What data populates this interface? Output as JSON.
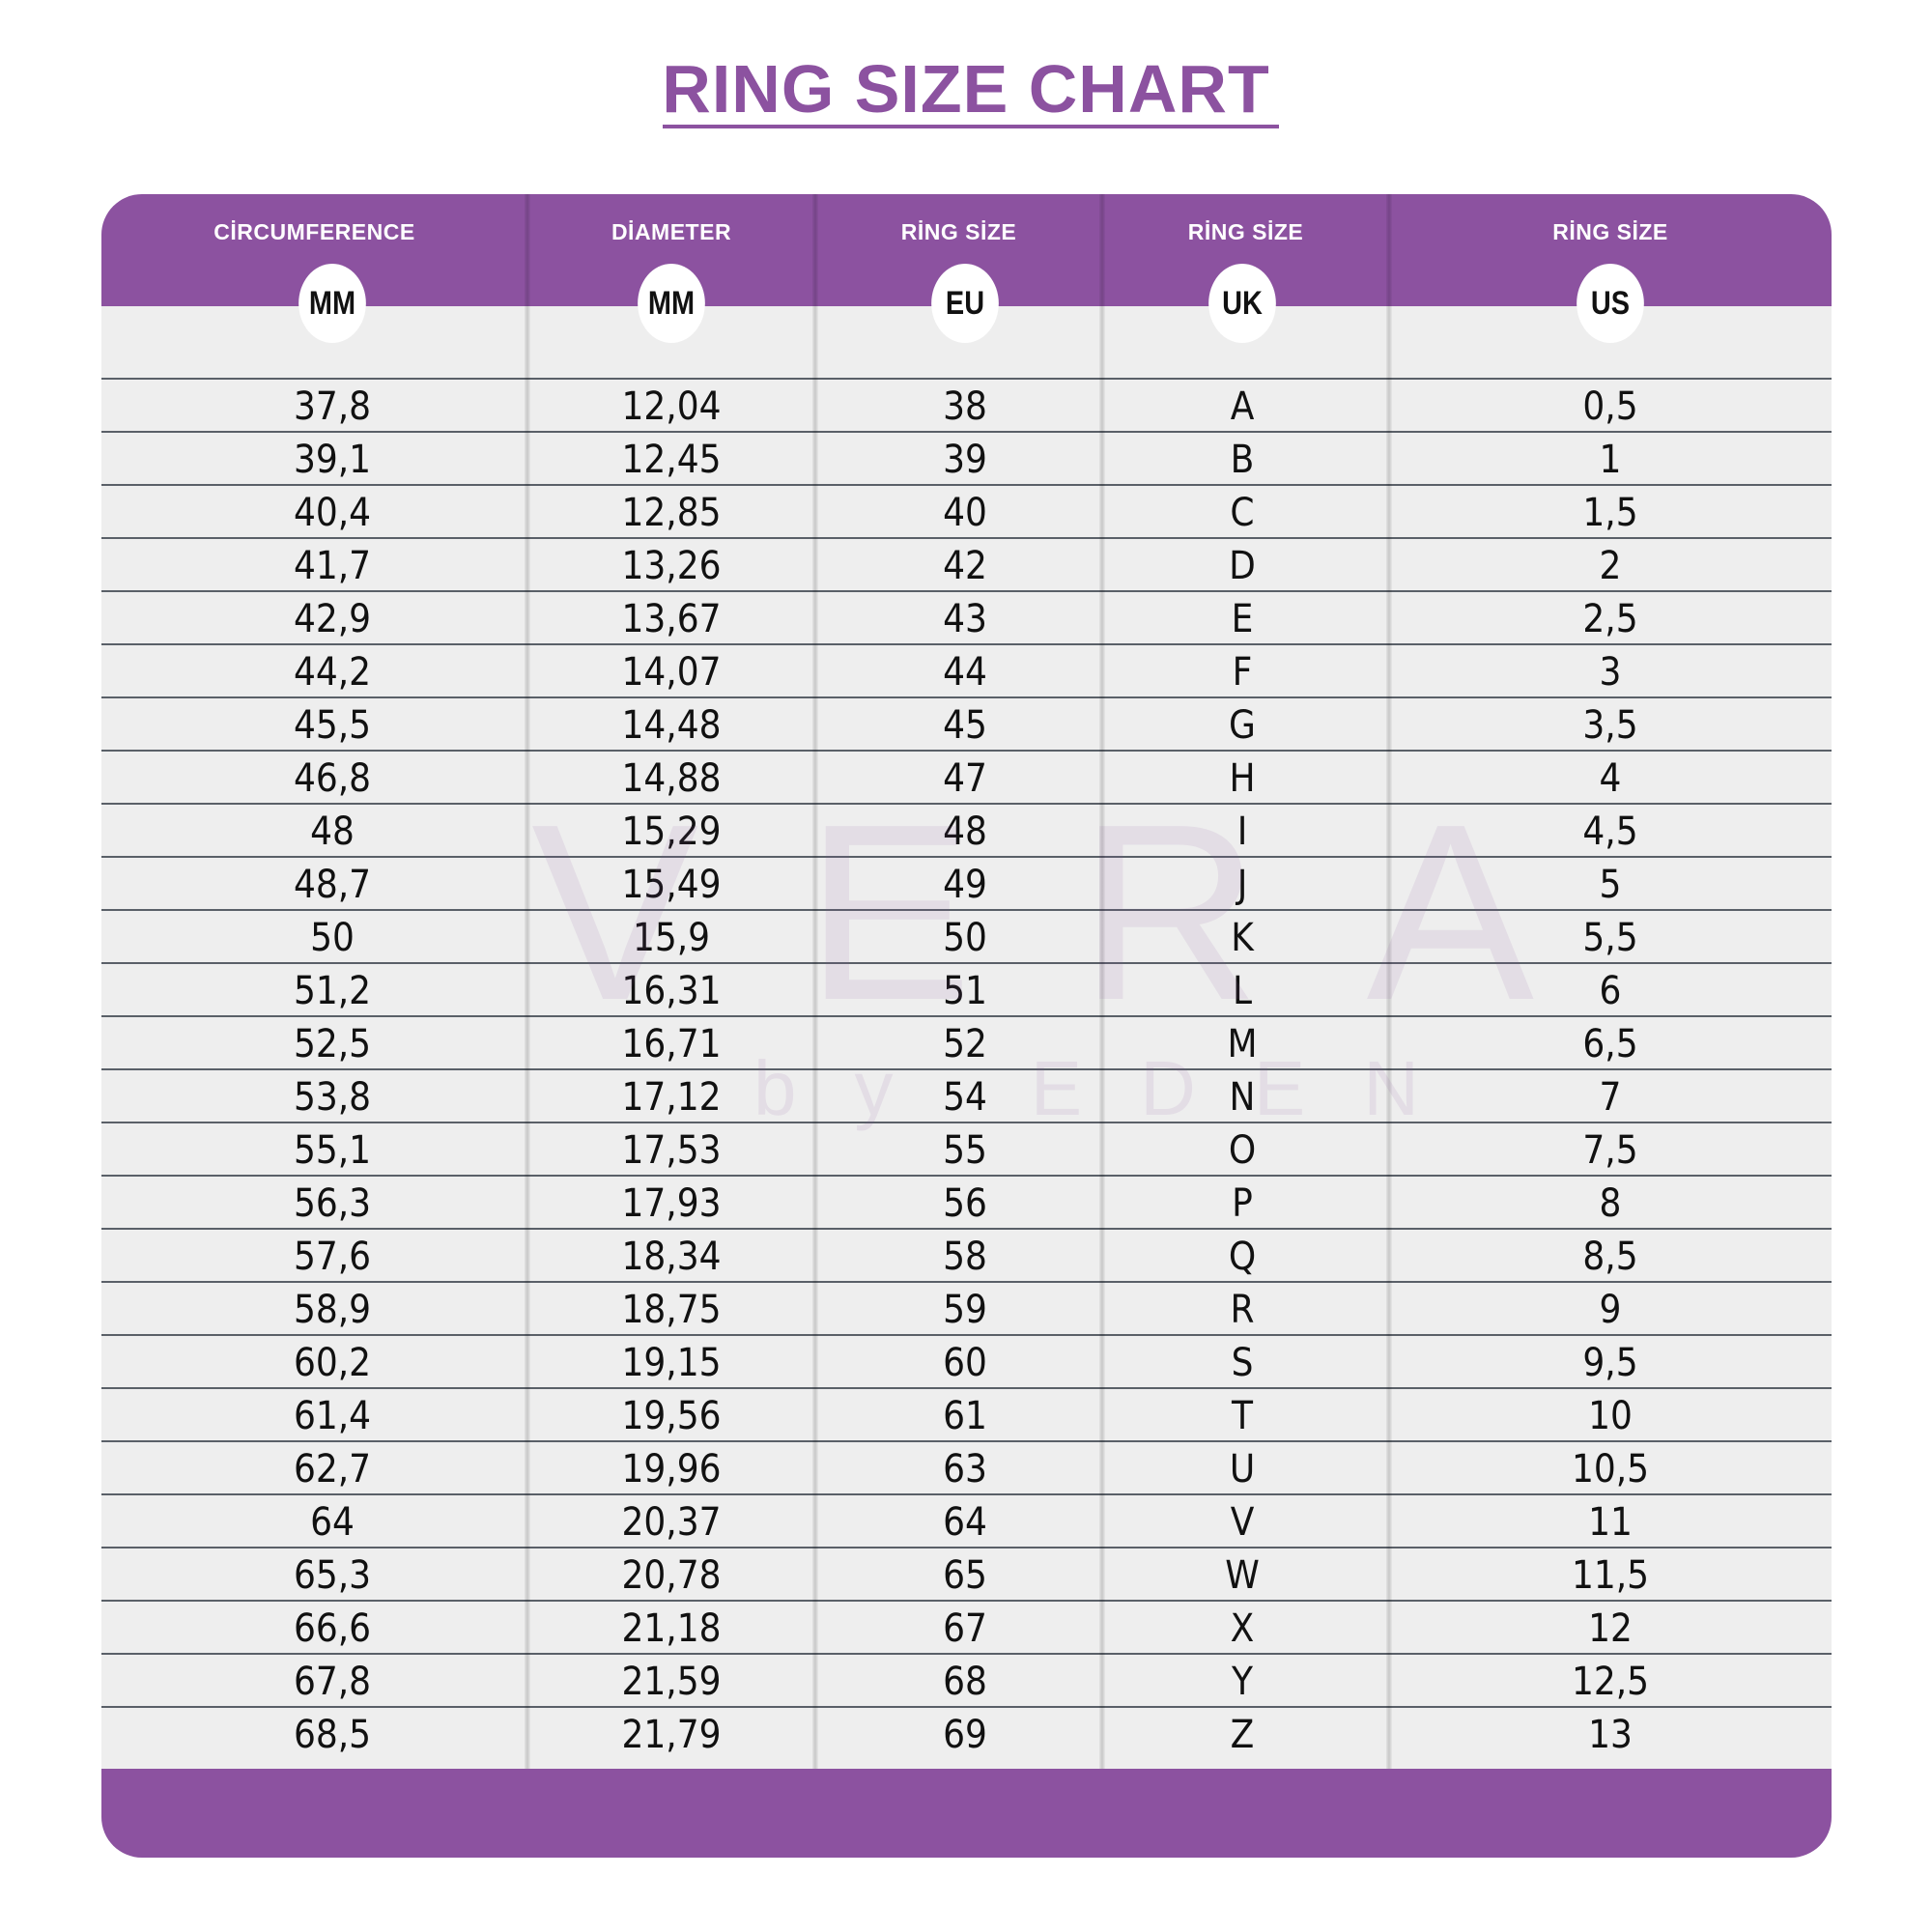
{
  "title": "RING SIZE CHART",
  "colors": {
    "accent": "#8c52a0",
    "row_bg": "#eeeeee",
    "row_line": "#5a6068"
  },
  "watermark": {
    "main": "VERA",
    "sub": "by EDEN"
  },
  "columns": [
    {
      "label": "CİRCUMFERENCE",
      "unit": "MM"
    },
    {
      "label": "DİAMETER",
      "unit": "MM"
    },
    {
      "label": "RİNG SİZE",
      "unit": "EU"
    },
    {
      "label": "RİNG SİZE",
      "unit": "UK"
    },
    {
      "label": "RİNG SİZE",
      "unit": "US"
    }
  ],
  "rows": [
    [
      "37,8",
      "12,04",
      "38",
      "A",
      "0,5"
    ],
    [
      "39,1",
      "12,45",
      "39",
      "B",
      "1"
    ],
    [
      "40,4",
      "12,85",
      "40",
      "C",
      "1,5"
    ],
    [
      "41,7",
      "13,26",
      "42",
      "D",
      "2"
    ],
    [
      "42,9",
      "13,67",
      "43",
      "E",
      "2,5"
    ],
    [
      "44,2",
      "14,07",
      "44",
      "F",
      "3"
    ],
    [
      "45,5",
      "14,48",
      "45",
      "G",
      "3,5"
    ],
    [
      "46,8",
      "14,88",
      "47",
      "H",
      "4"
    ],
    [
      "48",
      "15,29",
      "48",
      "I",
      "4,5"
    ],
    [
      "48,7",
      "15,49",
      "49",
      "J",
      "5"
    ],
    [
      "50",
      "15,9",
      "50",
      "K",
      "5,5"
    ],
    [
      "51,2",
      "16,31",
      "51",
      "L",
      "6"
    ],
    [
      "52,5",
      "16,71",
      "52",
      "M",
      "6,5"
    ],
    [
      "53,8",
      "17,12",
      "54",
      "N",
      "7"
    ],
    [
      "55,1",
      "17,53",
      "55",
      "O",
      "7,5"
    ],
    [
      "56,3",
      "17,93",
      "56",
      "P",
      "8"
    ],
    [
      "57,6",
      "18,34",
      "58",
      "Q",
      "8,5"
    ],
    [
      "58,9",
      "18,75",
      "59",
      "R",
      "9"
    ],
    [
      "60,2",
      "19,15",
      "60",
      "S",
      "9,5"
    ],
    [
      "61,4",
      "19,56",
      "61",
      "T",
      "10"
    ],
    [
      "62,7",
      "19,96",
      "63",
      "U",
      "10,5"
    ],
    [
      "64",
      "20,37",
      "64",
      "V",
      "11"
    ],
    [
      "65,3",
      "20,78",
      "65",
      "W",
      "11,5"
    ],
    [
      "66,6",
      "21,18",
      "67",
      "X",
      "12"
    ],
    [
      "67,8",
      "21,59",
      "68",
      "Y",
      "12,5"
    ],
    [
      "68,5",
      "21,79",
      "69",
      "Z",
      "13"
    ]
  ]
}
